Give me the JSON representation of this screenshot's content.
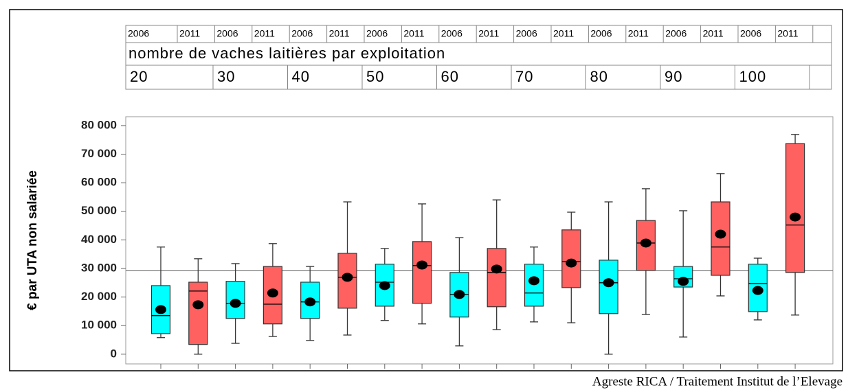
{
  "chart_data": {
    "type": "box",
    "header_years": [
      "2006",
      "2011",
      "2006",
      "2011",
      "2006",
      "2011",
      "2006",
      "2011",
      "2006",
      "2011",
      "2006",
      "2011",
      "2006",
      "2011",
      "2006",
      "2011",
      "2006",
      "2011"
    ],
    "header_title": "nombre de vaches laitières par exploitation",
    "group_labels": [
      "20",
      "30",
      "40",
      "50",
      "60",
      "70",
      "80",
      "90",
      "100"
    ],
    "ylabel": "€ par UTA non salariée",
    "source": "Agreste RICA / Traitement Institut de l’Elevage",
    "ylim": [
      -3400,
      83100
    ],
    "yticks": [
      0,
      {
        "value": 10000,
        "label": "10 000"
      },
      {
        "value": 20000,
        "label": "20 000"
      },
      {
        "value": 30000,
        "label": "30 000"
      },
      {
        "value": 40000,
        "label": "40 000"
      },
      {
        "value": 50000,
        "label": "50 000"
      },
      {
        "value": 60000,
        "label": "60 000"
      },
      {
        "value": 70000,
        "label": "70 000"
      },
      {
        "value": 80000,
        "label": "80 000"
      }
    ],
    "reference_line": 29300,
    "boxes": [
      {
        "color": "#00ffff",
        "low": 5800,
        "q1": 7200,
        "median": 13500,
        "q3": 24000,
        "high": 37500,
        "mean": 15600
      },
      {
        "color": "#ff6060",
        "low": 0,
        "q1": 3400,
        "median": 22100,
        "q3": 25200,
        "high": 33400,
        "mean": 17300
      },
      {
        "color": "#00ffff",
        "low": 3800,
        "q1": 12500,
        "median": 17800,
        "q3": 25500,
        "high": 31700,
        "mean": 17800
      },
      {
        "color": "#ff6060",
        "low": 6200,
        "q1": 10600,
        "median": 17500,
        "q3": 30700,
        "high": 38700,
        "mean": 21400
      },
      {
        "color": "#00ffff",
        "low": 4800,
        "q1": 12500,
        "median": 18300,
        "q3": 25200,
        "high": 30700,
        "mean": 18300
      },
      {
        "color": "#ff6060",
        "low": 6700,
        "q1": 16100,
        "median": 26900,
        "q3": 35300,
        "high": 53300,
        "mean": 26900
      },
      {
        "color": "#00ffff",
        "low": 11800,
        "q1": 16800,
        "median": 25200,
        "q3": 31500,
        "high": 37000,
        "mean": 24000
      },
      {
        "color": "#ff6060",
        "low": 10600,
        "q1": 17800,
        "median": 31000,
        "q3": 39400,
        "high": 52600,
        "mean": 31200
      },
      {
        "color": "#00ffff",
        "low": 2900,
        "q1": 13000,
        "median": 20900,
        "q3": 28600,
        "high": 40800,
        "mean": 20900
      },
      {
        "color": "#ff6060",
        "low": 8600,
        "q1": 16600,
        "median": 28600,
        "q3": 37000,
        "high": 54000,
        "mean": 29800
      },
      {
        "color": "#00ffff",
        "low": 11300,
        "q1": 16800,
        "median": 21400,
        "q3": 31500,
        "high": 37500,
        "mean": 25700
      },
      {
        "color": "#ff6060",
        "low": 11000,
        "q1": 23300,
        "median": 32400,
        "q3": 43500,
        "high": 49700,
        "mean": 31900
      },
      {
        "color": "#00ffff",
        "low": 0,
        "q1": 14200,
        "median": 25000,
        "q3": 32900,
        "high": 53300,
        "mean": 25000
      },
      {
        "color": "#ff6060",
        "low": 13900,
        "q1": 29300,
        "median": 38900,
        "q3": 46800,
        "high": 57900,
        "mean": 38900
      },
      {
        "color": "#00ffff",
        "low": 6000,
        "q1": 23500,
        "median": 26400,
        "q3": 30700,
        "high": 50200,
        "mean": 25500
      },
      {
        "color": "#ff6060",
        "low": 20400,
        "q1": 27600,
        "median": 37500,
        "q3": 53300,
        "high": 63200,
        "mean": 42000
      },
      {
        "color": "#00ffff",
        "low": 12000,
        "q1": 14900,
        "median": 24700,
        "q3": 31500,
        "high": 33600,
        "mean": 22300
      },
      {
        "color": "#ff6060",
        "low": 13700,
        "q1": 28600,
        "median": 45200,
        "q3": 73700,
        "high": 76900,
        "mean": 48000
      }
    ]
  }
}
